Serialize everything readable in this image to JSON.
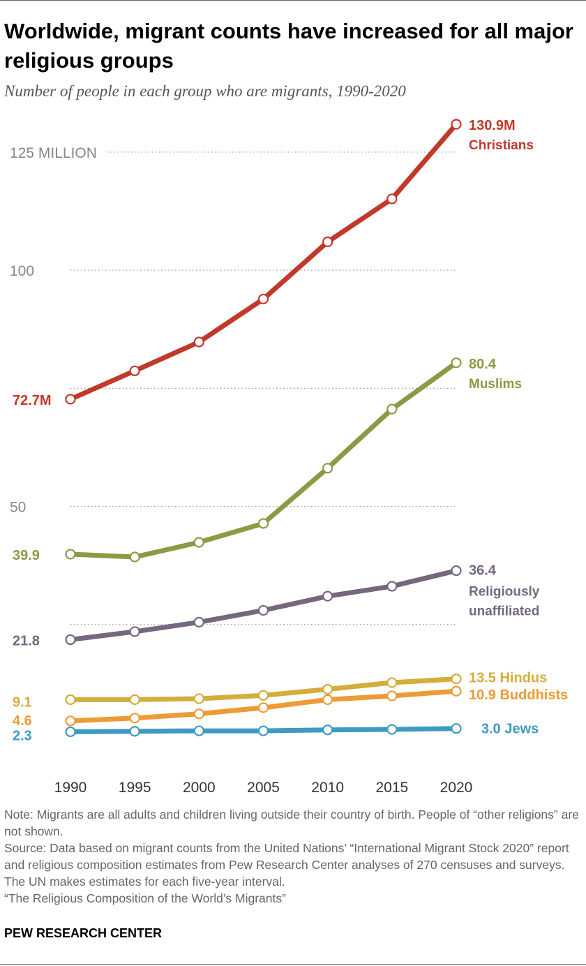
{
  "title": "Worldwide, migrant counts have increased for all major religious groups",
  "subtitle": "Number of people in each group who are migrants, 1990-2020",
  "note": "Note: Migrants are all adults and children living outside their country of birth. People of “other religions” are not shown.",
  "source": "Source: Data based on migrant counts from the United Nations’ “International Migrant Stock 2020” report and religious composition estimates from Pew Research Center analyses of 270 censuses and surveys. The UN makes estimates for each five-year interval.",
  "report": "“The Religious Composition of the World’s Migrants”",
  "brand": "PEW RESEARCH CENTER",
  "chart_data": {
    "type": "line",
    "x": [
      1990,
      1995,
      2000,
      2005,
      2010,
      2015,
      2020
    ],
    "ylim": [
      0,
      130.9
    ],
    "grid": true,
    "y_ticks": [
      {
        "value": 125,
        "label": "125 MILLION"
      },
      {
        "value": 100,
        "label": "100"
      },
      {
        "value": 75,
        "label": ""
      },
      {
        "value": 50,
        "label": "50"
      },
      {
        "value": 25,
        "label": ""
      }
    ],
    "series": [
      {
        "name": "Christians",
        "color": "#c0392b",
        "start_label": "72.7M",
        "end_label": "130.9M",
        "values": [
          72.7,
          78.7,
          84.8,
          93.9,
          106.0,
          115.1,
          130.9
        ]
      },
      {
        "name": "Muslims",
        "color": "#8c9a45",
        "start_label": "39.9",
        "end_label": "80.4",
        "values": [
          39.9,
          39.3,
          42.4,
          46.4,
          58.1,
          70.6,
          80.4
        ]
      },
      {
        "name": "Religiously unaffiliated",
        "color": "#74677f",
        "start_label": "21.8",
        "end_label": "36.4",
        "values": [
          21.8,
          23.5,
          25.5,
          28.0,
          31.0,
          33.1,
          36.4
        ]
      },
      {
        "name": "Hindus",
        "color": "#d4ad3b",
        "start_label": "9.1",
        "end_label": "13.5 Hindus",
        "values": [
          9.1,
          9.1,
          9.3,
          10.0,
          11.3,
          12.7,
          13.5
        ]
      },
      {
        "name": "Buddhists",
        "color": "#ec9b35",
        "start_label": "4.6",
        "end_label": "10.9 Buddhists",
        "values": [
          4.6,
          5.2,
          6.1,
          7.4,
          9.1,
          9.9,
          10.9
        ]
      },
      {
        "name": "Jews",
        "color": "#3d9bc2",
        "start_label": "2.3",
        "end_label": "3.0 Jews",
        "values": [
          2.3,
          2.4,
          2.5,
          2.5,
          2.7,
          2.8,
          3.0
        ]
      }
    ]
  }
}
